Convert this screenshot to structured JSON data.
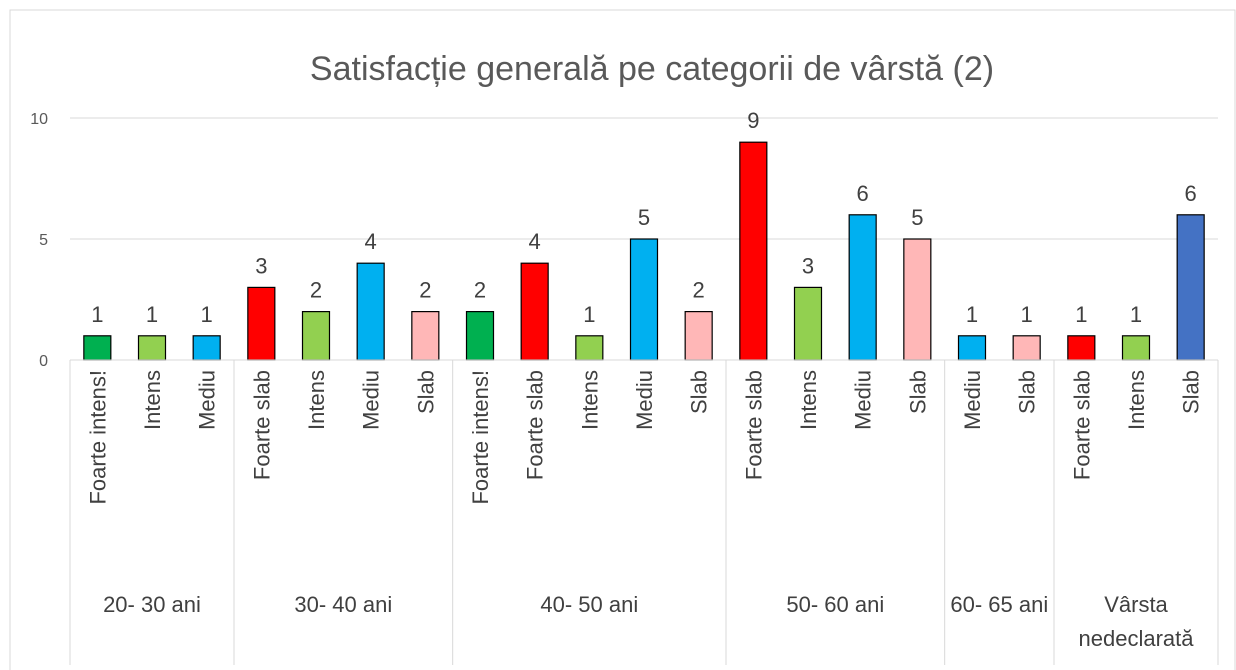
{
  "chart_data": {
    "type": "bar",
    "title": "Satisfacție generală pe categorii de vârstă (2)",
    "ylim": [
      0,
      10
    ],
    "yticks": [
      0,
      5,
      10
    ],
    "grid": true,
    "groups": [
      {
        "name": "20- 30 ani",
        "categories": [
          "Foarte intens!",
          "Intens",
          "Mediu"
        ],
        "values": [
          1,
          1,
          1
        ],
        "colors": [
          "#00b050",
          "#92d050",
          "#00b0f0"
        ]
      },
      {
        "name": "30- 40 ani",
        "categories": [
          "Foarte slab",
          "Intens",
          "Mediu",
          "Slab"
        ],
        "values": [
          3,
          2,
          4,
          2
        ],
        "colors": [
          "#ff0000",
          "#92d050",
          "#00b0f0",
          "#ffb7b7"
        ]
      },
      {
        "name": "40- 50 ani",
        "categories": [
          "Foarte intens!",
          "Foarte slab",
          "Intens",
          "Mediu",
          "Slab"
        ],
        "values": [
          2,
          4,
          1,
          5,
          2
        ],
        "colors": [
          "#00b050",
          "#ff0000",
          "#92d050",
          "#00b0f0",
          "#ffb7b7"
        ]
      },
      {
        "name": "50- 60 ani",
        "categories": [
          "Foarte slab",
          "Intens",
          "Mediu",
          "Slab"
        ],
        "values": [
          9,
          3,
          6,
          5
        ],
        "colors": [
          "#ff0000",
          "#92d050",
          "#00b0f0",
          "#ffb7b7"
        ]
      },
      {
        "name": "60- 65 ani",
        "categories": [
          "Mediu",
          "Slab"
        ],
        "values": [
          1,
          1
        ],
        "colors": [
          "#00b0f0",
          "#ffb7b7"
        ]
      },
      {
        "name": "Vârsta nedeclarată",
        "categories": [
          "Foarte slab",
          "Intens",
          "Slab"
        ],
        "values": [
          1,
          1,
          6
        ],
        "colors": [
          "#ff0000",
          "#92d050",
          "#4472c4"
        ]
      }
    ]
  }
}
